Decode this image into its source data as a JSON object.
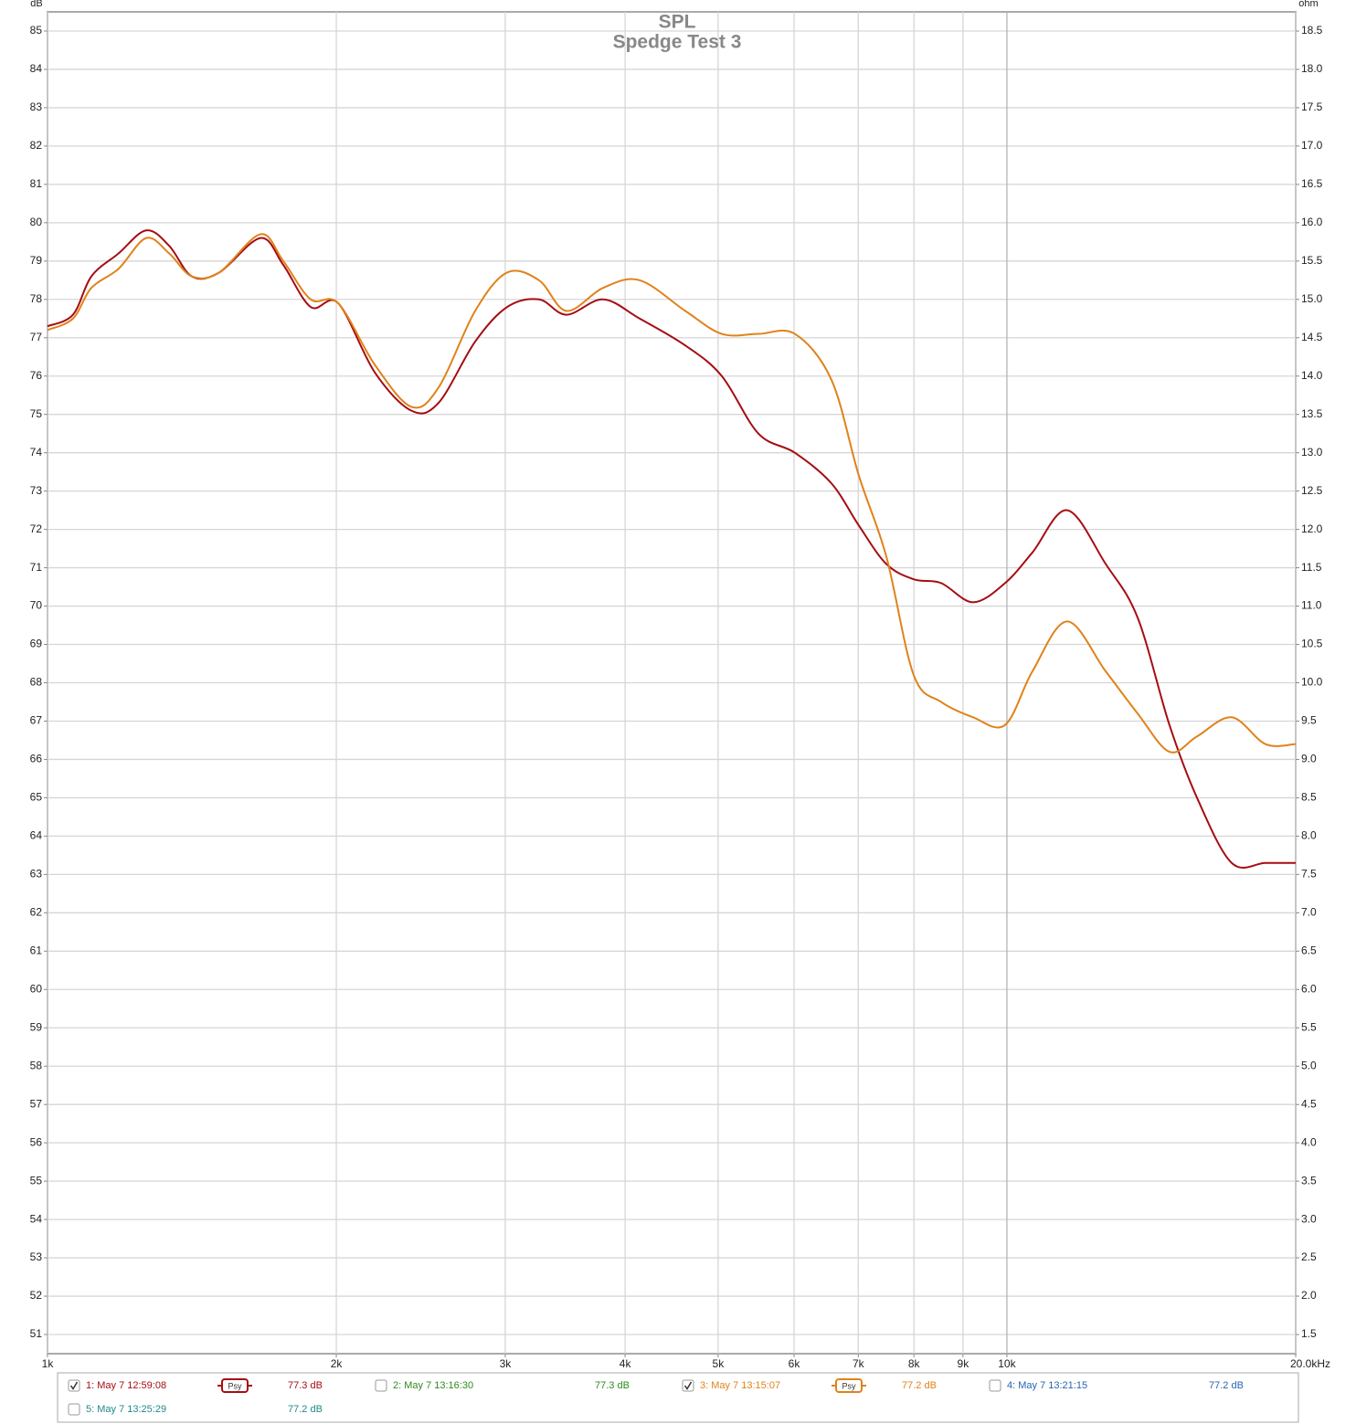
{
  "chart_data": {
    "type": "line",
    "title": "SPL",
    "subtitle": "Spedge Test 3",
    "y_label": "dB",
    "y2_label": "ohm",
    "log_x": true,
    "grid": true,
    "xlim": [
      1000,
      20000
    ],
    "ylim": [
      50.5,
      85.5
    ],
    "y2lim": [
      1.25,
      18.75
    ],
    "xticks": [
      {
        "value": 1000,
        "label": "1k"
      },
      {
        "value": 2000,
        "label": "2k"
      },
      {
        "value": 3000,
        "label": "3k"
      },
      {
        "value": 4000,
        "label": "4k"
      },
      {
        "value": 5000,
        "label": "5k"
      },
      {
        "value": 6000,
        "label": "6k"
      },
      {
        "value": 7000,
        "label": "7k"
      },
      {
        "value": 8000,
        "label": "8k"
      },
      {
        "value": 9000,
        "label": "9k"
      },
      {
        "value": 10000,
        "label": "10k"
      },
      {
        "value": 20000,
        "label": "20.0kHz"
      }
    ],
    "yticks": [
      51,
      52,
      53,
      54,
      55,
      56,
      57,
      58,
      59,
      60,
      61,
      62,
      63,
      64,
      65,
      66,
      67,
      68,
      69,
      70,
      71,
      72,
      73,
      74,
      75,
      76,
      77,
      78,
      79,
      80,
      81,
      82,
      83,
      84,
      85
    ],
    "y2ticks": [
      1.5,
      {
        "value": 2,
        "label": "2.0"
      },
      2.5,
      {
        "value": 3,
        "label": "3.0"
      },
      3.5,
      {
        "value": 4,
        "label": "4.0"
      },
      4.5,
      {
        "value": 5,
        "label": "5.0"
      },
      5.5,
      {
        "value": 6,
        "label": "6.0"
      },
      6.5,
      {
        "value": 7,
        "label": "7.0"
      },
      7.5,
      {
        "value": 8,
        "label": "8.0"
      },
      8.5,
      {
        "value": 9,
        "label": "9.0"
      },
      9.5,
      {
        "value": 10,
        "label": "10.0"
      },
      10.5,
      {
        "value": 11,
        "label": "11.0"
      },
      11.5,
      {
        "value": 12,
        "label": "12.0"
      },
      12.5,
      {
        "value": 13,
        "label": "13.0"
      },
      13.5,
      {
        "value": 14,
        "label": "14.0"
      },
      14.5,
      {
        "value": 15,
        "label": "15.0"
      },
      15.5,
      {
        "value": 16,
        "label": "16.0"
      },
      16.5,
      {
        "value": 17,
        "label": "17.0"
      },
      17.5,
      {
        "value": 18,
        "label": "18.0"
      },
      18.5
    ],
    "x": [
      1000,
      1063,
      1111,
      1186,
      1267,
      1339,
      1414,
      1510,
      1667,
      1761,
      1881,
      2009,
      2193,
      2394,
      2556,
      2791,
      3013,
      3253,
      3475,
      3794,
      4142,
      4621,
      5045,
      5508,
      6012,
      6564,
      7010,
      7486,
      7996,
      8540,
      9221,
      9956,
      10633,
      11559,
      12675,
      13685,
      14772,
      15783,
      17152,
      18602,
      20000
    ],
    "series": [
      {
        "name": "1: May 7 12:59:08",
        "color": "#a50d12",
        "checked": true,
        "smoothing": "Psy",
        "level": "77.3 dB",
        "values": [
          77.3,
          77.6,
          78.6,
          79.2,
          79.8,
          79.4,
          78.6,
          78.7,
          79.6,
          78.9,
          77.8,
          77.9,
          76.1,
          75.1,
          75.3,
          76.9,
          77.8,
          78.0,
          77.6,
          78.0,
          77.5,
          76.8,
          76.0,
          74.5,
          74.0,
          73.2,
          72.1,
          71.1,
          70.7,
          70.6,
          70.1,
          70.6,
          71.4,
          72.5,
          71.1,
          69.7,
          66.9,
          65.0,
          63.3,
          63.3,
          63.3
        ]
      },
      {
        "name": "3: May 7 13:15:07",
        "color": "#e0821a",
        "checked": true,
        "smoothing": "Psy",
        "level": "77.2 dB",
        "values": [
          77.2,
          77.5,
          78.3,
          78.8,
          79.6,
          79.2,
          78.6,
          78.7,
          79.7,
          79.0,
          78.0,
          77.9,
          76.3,
          75.2,
          75.7,
          77.7,
          78.7,
          78.5,
          77.7,
          78.3,
          78.5,
          77.7,
          77.1,
          77.1,
          77.1,
          75.9,
          73.4,
          71.3,
          68.2,
          67.5,
          67.1,
          66.9,
          68.3,
          69.6,
          68.3,
          67.2,
          66.2,
          66.6,
          67.1,
          66.4,
          66.4
        ]
      }
    ],
    "other_measurements": [
      {
        "name": "2: May 7 13:16:30",
        "color": "#2e8b1e",
        "checked": false,
        "level": "77.3 dB"
      },
      {
        "name": "4: May 7 13:21:15",
        "color": "#2a64b0",
        "checked": false,
        "level": "77.2 dB"
      },
      {
        "name": "5: May 7 13:25:29",
        "color": "#1f8a8a",
        "checked": false,
        "level": "77.2 dB"
      }
    ]
  }
}
